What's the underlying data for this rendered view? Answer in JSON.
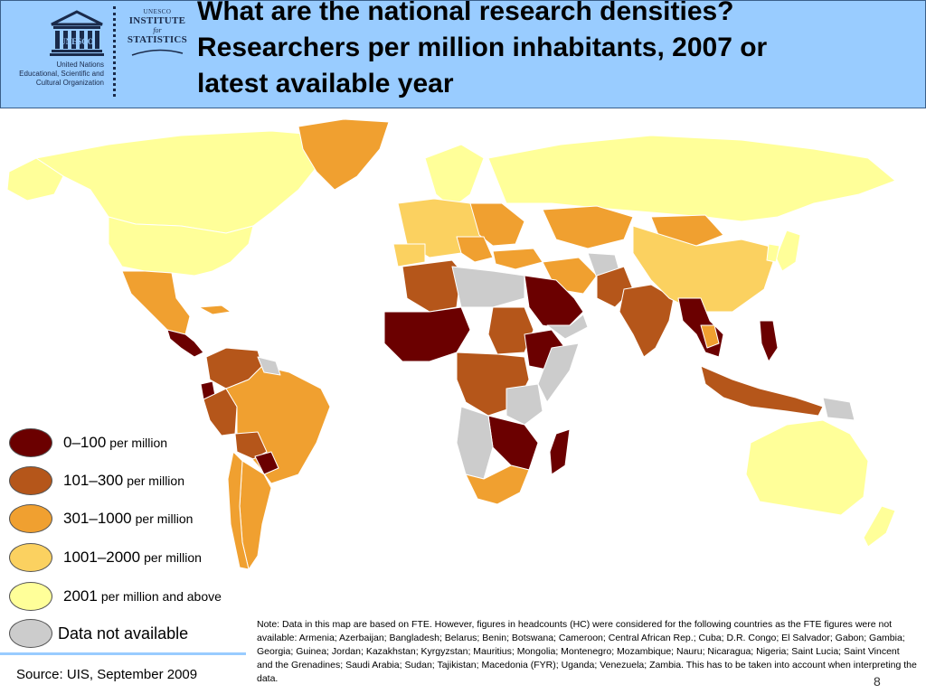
{
  "header": {
    "title_lines": [
      "What are the national research densities?",
      "Researchers per million inhabitants, 2007 or",
      "latest available year"
    ],
    "unesco": {
      "wordmark": "UNESCO",
      "org_lines": [
        "United Nations",
        "Educational, Scientific and",
        "Cultural Organization"
      ]
    },
    "uis": {
      "line1": "UNESCO",
      "line2": "INSTITUTE",
      "line3": "for",
      "line4": "STATISTICS"
    }
  },
  "legend": [
    {
      "range": "0–100",
      "unit": "per million",
      "color": "#6b0000"
    },
    {
      "range": "101–300",
      "unit": "per million",
      "color": "#b5561a"
    },
    {
      "range": "301–1000",
      "unit": "per million",
      "color": "#f0a030"
    },
    {
      "range": "1001–2000",
      "unit": "per million",
      "color": "#fbd160"
    },
    {
      "range": "2001",
      "unit": "per million and above",
      "color": "#ffff99"
    }
  ],
  "legend_na": {
    "label": "Data not available",
    "color": "#cccccc"
  },
  "source": "Source: UIS, September 2009",
  "note": "Note: Data in this map are based on FTE. However, figures in headcounts (HC) were considered for the following countries as the FTE figures were not available: Armenia; Azerbaijan; Bangladesh; Belarus; Benin; Botswana; Cameroon; Central African Rep.; Cuba; D.R. Congo; El Salvador; Gabon; Gambia; Georgia; Guinea; Jordan; Kazakhstan; Kyrgyzstan; Mauritius; Mongolia; Montenegro; Mozambique; Nauru; Nicaragua; Nigeria; Saint Lucia; Saint Vincent and the Grenadines; Saudi Arabia; Sudan; Tajikistan; Macedonia (FYR); Uganda; Venezuela; Zambia. This has to be taken into account when interpreting the data.",
  "page_number": "8"
}
